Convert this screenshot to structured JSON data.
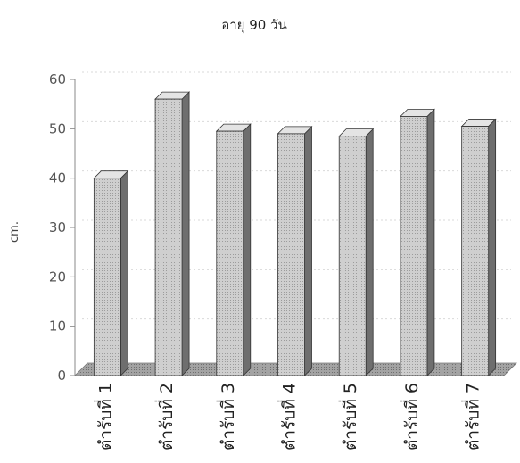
{
  "chart_data": {
    "type": "bar",
    "title": "อายุ 90 วัน",
    "ylabel": "cm.",
    "xlabel": "",
    "categories": [
      "ตำรับที่ 1",
      "ตำรับที่ 2",
      "ตำรับที่ 3",
      "ตำรับที่ 4",
      "ตำรับที่ 5",
      "ตำรับที่ 6",
      "ตำรับที่ 7"
    ],
    "values": [
      40,
      56,
      49.5,
      49,
      48.5,
      52.5,
      50.5
    ],
    "yticks": [
      "0",
      "10",
      "20",
      "30",
      "40",
      "50",
      "60"
    ],
    "ylim": [
      0,
      60
    ],
    "grid": true,
    "legend": "none",
    "style": "3d-bar",
    "colors": {
      "bar_front": "#c8c8c8",
      "bar_side": "#6e6e6e",
      "bar_top": "#e4e4e4",
      "floor": "#9a9a9a",
      "axis": "#888888"
    }
  }
}
